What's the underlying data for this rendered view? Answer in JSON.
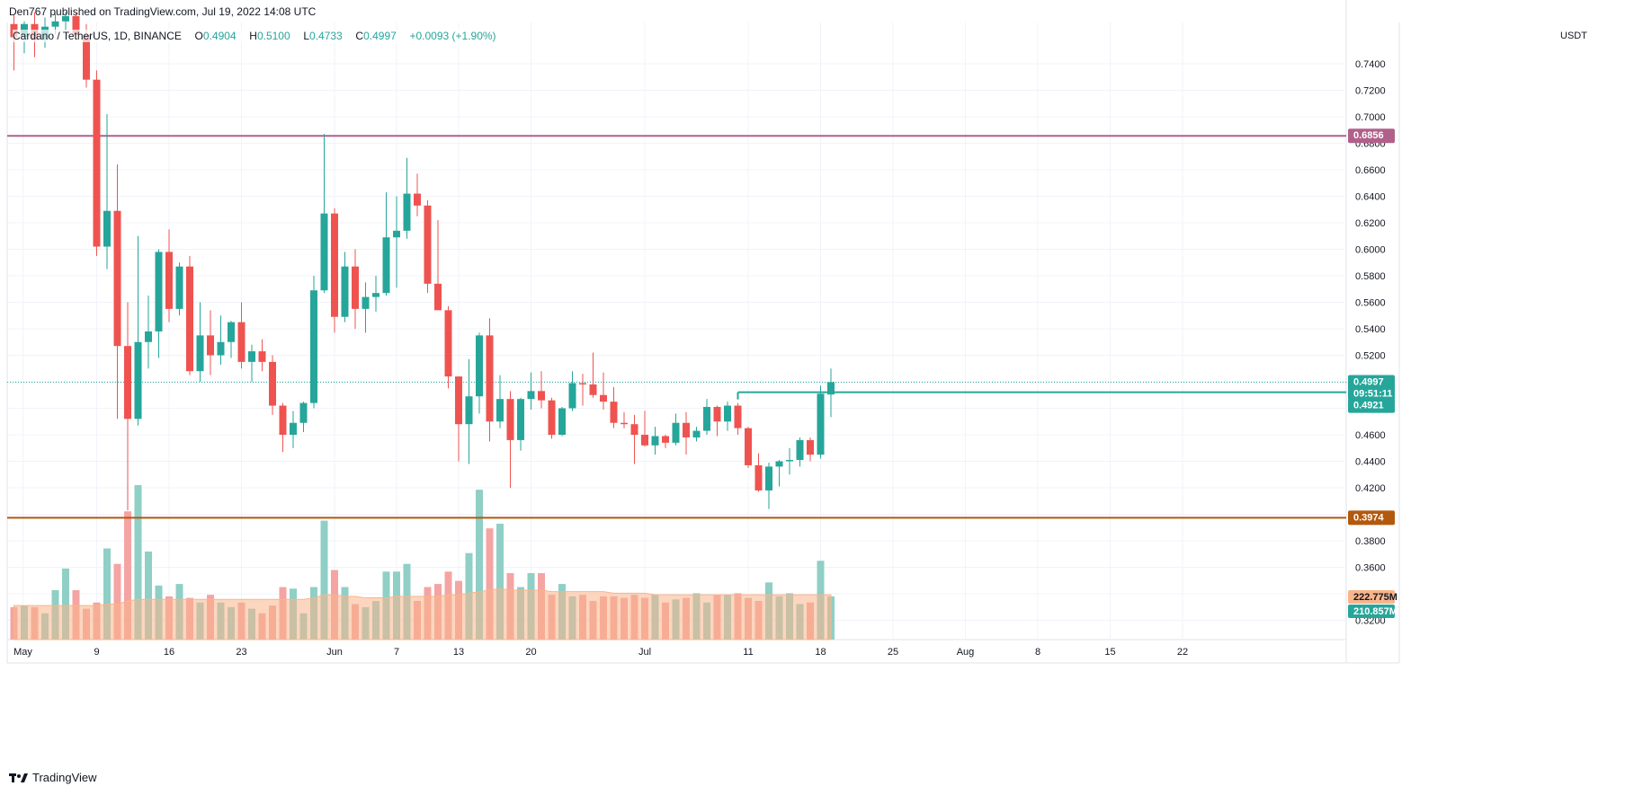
{
  "header": {
    "published": "Den767 published on TradingView.com, Jul 19, 2022 14:08 UTC"
  },
  "legend": {
    "symbol": "Cardano / TetherUS, 1D, BINANCE",
    "o_label": "O",
    "o": "0.4904",
    "h_label": "H",
    "h": "0.5100",
    "l_label": "L",
    "l": "0.4733",
    "c_label": "C",
    "c": "0.4997",
    "change": "+0.0093 (+1.90%)"
  },
  "axis": {
    "unit": "USDT"
  },
  "footer": {
    "brand": "TradingView"
  },
  "colors": {
    "up": "#26a69a",
    "down": "#ef5350",
    "vol_up": "#8fcfc6",
    "vol_down": "#f4a4a3",
    "vol_ma": "#f9b48a",
    "resistance": "#b0608a",
    "support": "#b3590e",
    "level": "#26a69a"
  },
  "price_labels": {
    "current": "0.4997",
    "countdown": "09:51:11",
    "level": "0.4921",
    "resistance": "0.6856",
    "support": "0.3974",
    "vol_ma": "222.775M",
    "vol": "210.857M"
  },
  "chart_data": {
    "type": "candlestick",
    "ylim": [
      0.3103,
      0.7769
    ],
    "yticks": [
      "0.7400",
      "0.7200",
      "0.7000",
      "0.6800",
      "0.6600",
      "0.6400",
      "0.6200",
      "0.6000",
      "0.5800",
      "0.5600",
      "0.5400",
      "0.5200",
      "0.5000",
      "0.4800",
      "0.4600",
      "0.4400",
      "0.4200",
      "0.4000",
      "0.3800",
      "0.3600",
      "0.3400",
      "0.3200"
    ],
    "xticks": [
      {
        "label": "May",
        "day": 0
      },
      {
        "label": "9",
        "day": 8
      },
      {
        "label": "16",
        "day": 15
      },
      {
        "label": "23",
        "day": 22
      },
      {
        "label": "Jun",
        "day": 31
      },
      {
        "label": "7",
        "day": 37
      },
      {
        "label": "13",
        "day": 43
      },
      {
        "label": "20",
        "day": 50
      },
      {
        "label": "Jul",
        "day": 61
      },
      {
        "label": "11",
        "day": 71
      },
      {
        "label": "18",
        "day": 78
      },
      {
        "label": "25",
        "day": 85
      },
      {
        "label": "Aug",
        "day": 92
      },
      {
        "label": "8",
        "day": 99
      },
      {
        "label": "15",
        "day": 106
      },
      {
        "label": "22",
        "day": 113
      }
    ],
    "horizontal_lines": [
      {
        "value": 0.6856,
        "color": "resistance"
      },
      {
        "value": 0.3974,
        "color": "support"
      },
      {
        "value": 0.4921,
        "color": "level",
        "from_day": 70
      }
    ],
    "current_price": 0.4997,
    "candles": [
      {
        "day": 0,
        "o": 0.77,
        "h": 0.777,
        "l": 0.735,
        "c": 0.76
      },
      {
        "day": 1,
        "o": 0.76,
        "h": 0.772,
        "l": 0.748,
        "c": 0.77
      },
      {
        "day": 2,
        "o": 0.77,
        "h": 0.779,
        "l": 0.745,
        "c": 0.758
      },
      {
        "day": 3,
        "o": 0.758,
        "h": 0.775,
        "l": 0.752,
        "c": 0.768
      },
      {
        "day": 4,
        "o": 0.768,
        "h": 0.778,
        "l": 0.762,
        "c": 0.772
      },
      {
        "day": 5,
        "o": 0.772,
        "h": 0.779,
        "l": 0.765,
        "c": 0.776
      },
      {
        "day": 6,
        "o": 0.776,
        "h": 0.779,
        "l": 0.758,
        "c": 0.762
      },
      {
        "day": 7,
        "o": 0.762,
        "h": 0.77,
        "l": 0.722,
        "c": 0.728
      },
      {
        "day": 8,
        "o": 0.728,
        "h": 0.735,
        "l": 0.595,
        "c": 0.602
      },
      {
        "day": 9,
        "o": 0.602,
        "h": 0.702,
        "l": 0.585,
        "c": 0.629
      },
      {
        "day": 10,
        "o": 0.629,
        "h": 0.664,
        "l": 0.472,
        "c": 0.527
      },
      {
        "day": 11,
        "o": 0.527,
        "h": 0.56,
        "l": 0.403,
        "c": 0.472
      },
      {
        "day": 12,
        "o": 0.472,
        "h": 0.61,
        "l": 0.467,
        "c": 0.53
      },
      {
        "day": 13,
        "o": 0.53,
        "h": 0.565,
        "l": 0.51,
        "c": 0.538
      },
      {
        "day": 14,
        "o": 0.538,
        "h": 0.6,
        "l": 0.518,
        "c": 0.598
      },
      {
        "day": 15,
        "o": 0.598,
        "h": 0.615,
        "l": 0.545,
        "c": 0.555
      },
      {
        "day": 16,
        "o": 0.555,
        "h": 0.59,
        "l": 0.55,
        "c": 0.587
      },
      {
        "day": 17,
        "o": 0.587,
        "h": 0.595,
        "l": 0.505,
        "c": 0.508
      },
      {
        "day": 18,
        "o": 0.508,
        "h": 0.56,
        "l": 0.5,
        "c": 0.535
      },
      {
        "day": 19,
        "o": 0.535,
        "h": 0.554,
        "l": 0.505,
        "c": 0.52
      },
      {
        "day": 20,
        "o": 0.52,
        "h": 0.55,
        "l": 0.513,
        "c": 0.53
      },
      {
        "day": 21,
        "o": 0.53,
        "h": 0.546,
        "l": 0.518,
        "c": 0.545
      },
      {
        "day": 22,
        "o": 0.545,
        "h": 0.56,
        "l": 0.51,
        "c": 0.515
      },
      {
        "day": 23,
        "o": 0.515,
        "h": 0.528,
        "l": 0.5,
        "c": 0.523
      },
      {
        "day": 24,
        "o": 0.523,
        "h": 0.532,
        "l": 0.508,
        "c": 0.515
      },
      {
        "day": 25,
        "o": 0.515,
        "h": 0.52,
        "l": 0.475,
        "c": 0.482
      },
      {
        "day": 26,
        "o": 0.482,
        "h": 0.484,
        "l": 0.447,
        "c": 0.46
      },
      {
        "day": 27,
        "o": 0.46,
        "h": 0.478,
        "l": 0.45,
        "c": 0.469
      },
      {
        "day": 28,
        "o": 0.469,
        "h": 0.485,
        "l": 0.462,
        "c": 0.484
      },
      {
        "day": 29,
        "o": 0.484,
        "h": 0.58,
        "l": 0.48,
        "c": 0.569
      },
      {
        "day": 30,
        "o": 0.569,
        "h": 0.687,
        "l": 0.567,
        "c": 0.627
      },
      {
        "day": 31,
        "o": 0.627,
        "h": 0.631,
        "l": 0.537,
        "c": 0.549
      },
      {
        "day": 32,
        "o": 0.549,
        "h": 0.598,
        "l": 0.545,
        "c": 0.587
      },
      {
        "day": 33,
        "o": 0.587,
        "h": 0.6,
        "l": 0.54,
        "c": 0.555
      },
      {
        "day": 34,
        "o": 0.555,
        "h": 0.575,
        "l": 0.537,
        "c": 0.564
      },
      {
        "day": 35,
        "o": 0.564,
        "h": 0.58,
        "l": 0.553,
        "c": 0.567
      },
      {
        "day": 36,
        "o": 0.567,
        "h": 0.643,
        "l": 0.565,
        "c": 0.609
      },
      {
        "day": 37,
        "o": 0.609,
        "h": 0.64,
        "l": 0.571,
        "c": 0.614
      },
      {
        "day": 38,
        "o": 0.614,
        "h": 0.669,
        "l": 0.608,
        "c": 0.642
      },
      {
        "day": 39,
        "o": 0.642,
        "h": 0.657,
        "l": 0.625,
        "c": 0.633
      },
      {
        "day": 40,
        "o": 0.633,
        "h": 0.637,
        "l": 0.567,
        "c": 0.574
      },
      {
        "day": 41,
        "o": 0.574,
        "h": 0.622,
        "l": 0.555,
        "c": 0.554
      },
      {
        "day": 42,
        "o": 0.554,
        "h": 0.557,
        "l": 0.495,
        "c": 0.504
      },
      {
        "day": 43,
        "o": 0.504,
        "h": 0.5,
        "l": 0.44,
        "c": 0.468
      },
      {
        "day": 44,
        "o": 0.468,
        "h": 0.517,
        "l": 0.438,
        "c": 0.489
      },
      {
        "day": 45,
        "o": 0.489,
        "h": 0.537,
        "l": 0.476,
        "c": 0.535
      },
      {
        "day": 46,
        "o": 0.535,
        "h": 0.548,
        "l": 0.455,
        "c": 0.47
      },
      {
        "day": 47,
        "o": 0.47,
        "h": 0.505,
        "l": 0.465,
        "c": 0.487
      },
      {
        "day": 48,
        "o": 0.487,
        "h": 0.493,
        "l": 0.42,
        "c": 0.456
      },
      {
        "day": 49,
        "o": 0.456,
        "h": 0.488,
        "l": 0.448,
        "c": 0.487
      },
      {
        "day": 50,
        "o": 0.487,
        "h": 0.507,
        "l": 0.479,
        "c": 0.493
      },
      {
        "day": 51,
        "o": 0.493,
        "h": 0.508,
        "l": 0.48,
        "c": 0.486
      },
      {
        "day": 52,
        "o": 0.486,
        "h": 0.488,
        "l": 0.457,
        "c": 0.46
      },
      {
        "day": 53,
        "o": 0.46,
        "h": 0.481,
        "l": 0.459,
        "c": 0.48
      },
      {
        "day": 54,
        "o": 0.48,
        "h": 0.508,
        "l": 0.478,
        "c": 0.499
      },
      {
        "day": 55,
        "o": 0.499,
        "h": 0.506,
        "l": 0.482,
        "c": 0.498
      },
      {
        "day": 56,
        "o": 0.498,
        "h": 0.522,
        "l": 0.488,
        "c": 0.49
      },
      {
        "day": 57,
        "o": 0.49,
        "h": 0.507,
        "l": 0.479,
        "c": 0.485
      },
      {
        "day": 58,
        "o": 0.485,
        "h": 0.496,
        "l": 0.465,
        "c": 0.469
      },
      {
        "day": 59,
        "o": 0.469,
        "h": 0.477,
        "l": 0.465,
        "c": 0.468
      },
      {
        "day": 60,
        "o": 0.468,
        "h": 0.475,
        "l": 0.438,
        "c": 0.46
      },
      {
        "day": 61,
        "o": 0.46,
        "h": 0.478,
        "l": 0.451,
        "c": 0.452
      },
      {
        "day": 62,
        "o": 0.452,
        "h": 0.466,
        "l": 0.445,
        "c": 0.459
      },
      {
        "day": 63,
        "o": 0.459,
        "h": 0.46,
        "l": 0.45,
        "c": 0.454
      },
      {
        "day": 64,
        "o": 0.454,
        "h": 0.476,
        "l": 0.452,
        "c": 0.469
      },
      {
        "day": 65,
        "o": 0.469,
        "h": 0.477,
        "l": 0.445,
        "c": 0.458
      },
      {
        "day": 66,
        "o": 0.458,
        "h": 0.466,
        "l": 0.455,
        "c": 0.463
      },
      {
        "day": 67,
        "o": 0.463,
        "h": 0.487,
        "l": 0.46,
        "c": 0.481
      },
      {
        "day": 68,
        "o": 0.481,
        "h": 0.482,
        "l": 0.459,
        "c": 0.47
      },
      {
        "day": 69,
        "o": 0.47,
        "h": 0.485,
        "l": 0.463,
        "c": 0.482
      },
      {
        "day": 70,
        "o": 0.482,
        "h": 0.484,
        "l": 0.46,
        "c": 0.465
      },
      {
        "day": 71,
        "o": 0.465,
        "h": 0.466,
        "l": 0.435,
        "c": 0.437
      },
      {
        "day": 72,
        "o": 0.437,
        "h": 0.446,
        "l": 0.417,
        "c": 0.418
      },
      {
        "day": 73,
        "o": 0.418,
        "h": 0.439,
        "l": 0.404,
        "c": 0.436
      },
      {
        "day": 74,
        "o": 0.436,
        "h": 0.441,
        "l": 0.421,
        "c": 0.44
      },
      {
        "day": 75,
        "o": 0.44,
        "h": 0.45,
        "l": 0.43,
        "c": 0.441
      },
      {
        "day": 76,
        "o": 0.441,
        "h": 0.458,
        "l": 0.436,
        "c": 0.456
      },
      {
        "day": 77,
        "o": 0.456,
        "h": 0.458,
        "l": 0.44,
        "c": 0.445
      },
      {
        "day": 78,
        "o": 0.445,
        "h": 0.497,
        "l": 0.442,
        "c": 0.491
      },
      {
        "day": 79,
        "o": 0.4904,
        "h": 0.51,
        "l": 0.4733,
        "c": 0.4997
      }
    ],
    "volume_ratios": [
      0.21,
      0.22,
      0.21,
      0.17,
      0.32,
      0.46,
      0.32,
      0.2,
      0.24,
      0.59,
      0.49,
      0.83,
      1.0,
      0.57,
      0.35,
      0.28,
      0.36,
      0.27,
      0.24,
      0.29,
      0.24,
      0.21,
      0.24,
      0.2,
      0.17,
      0.22,
      0.34,
      0.33,
      0.17,
      0.34,
      0.77,
      0.45,
      0.34,
      0.23,
      0.21,
      0.25,
      0.44,
      0.44,
      0.49,
      0.25,
      0.34,
      0.36,
      0.44,
      0.38,
      0.56,
      0.97,
      0.72,
      0.75,
      0.43,
      0.34,
      0.43,
      0.43,
      0.29,
      0.36,
      0.28,
      0.29,
      0.25,
      0.28,
      0.28,
      0.27,
      0.29,
      0.27,
      0.29,
      0.24,
      0.26,
      0.27,
      0.3,
      0.24,
      0.29,
      0.29,
      0.3,
      0.27,
      0.25,
      0.37,
      0.28,
      0.3,
      0.23,
      0.24,
      0.51,
      0.28
    ],
    "volume_ma_ratios": [
      0.22,
      0.22,
      0.22,
      0.22,
      0.22,
      0.22,
      0.22,
      0.22,
      0.22,
      0.23,
      0.23,
      0.25,
      0.26,
      0.26,
      0.26,
      0.26,
      0.26,
      0.26,
      0.26,
      0.26,
      0.26,
      0.26,
      0.26,
      0.26,
      0.26,
      0.26,
      0.26,
      0.26,
      0.26,
      0.27,
      0.29,
      0.29,
      0.28,
      0.28,
      0.27,
      0.27,
      0.27,
      0.28,
      0.28,
      0.28,
      0.28,
      0.28,
      0.29,
      0.29,
      0.3,
      0.31,
      0.32,
      0.33,
      0.32,
      0.32,
      0.32,
      0.32,
      0.31,
      0.31,
      0.31,
      0.31,
      0.31,
      0.31,
      0.3,
      0.3,
      0.3,
      0.3,
      0.29,
      0.29,
      0.29,
      0.29,
      0.29,
      0.29,
      0.29,
      0.29,
      0.29,
      0.29,
      0.29,
      0.29,
      0.29,
      0.29,
      0.29,
      0.29,
      0.29,
      0.29
    ]
  }
}
